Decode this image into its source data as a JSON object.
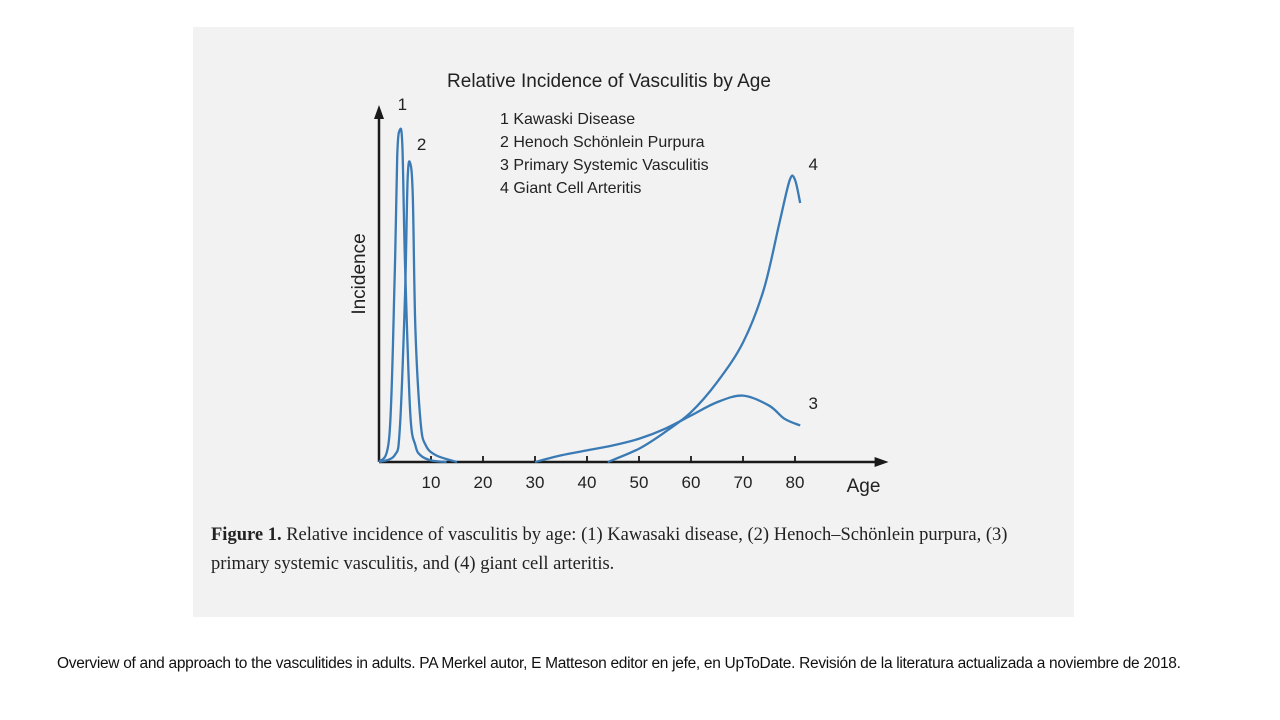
{
  "chart_data": {
    "type": "line",
    "title": "Relative Incidence of Vasculitis by Age",
    "xlabel": "Age",
    "ylabel": "Incidence",
    "xticks": [
      10,
      20,
      30,
      40,
      50,
      60,
      70,
      80
    ],
    "xlim": [
      0,
      98
    ],
    "ylim": [
      0,
      1
    ],
    "legend_placement": "top-center",
    "legend": [
      "1 Kawaski Disease",
      "2 Henoch Schönlein Purpura",
      "3 Primary Systemic Vasculitis",
      "4 Giant Cell Arteritis"
    ],
    "series": [
      {
        "name": "1",
        "x": [
          0,
          2,
          3,
          3.5,
          4,
          4.5,
          5,
          6,
          7,
          8,
          10,
          13
        ],
        "y": [
          0,
          0.08,
          0.55,
          0.92,
          1.0,
          0.95,
          0.6,
          0.15,
          0.05,
          0.02,
          0.005,
          0
        ]
      },
      {
        "name": "2",
        "x": [
          0,
          3,
          4,
          5,
          5.5,
          6,
          6.5,
          7,
          8,
          9,
          11,
          15
        ],
        "y": [
          0,
          0.02,
          0.1,
          0.5,
          0.85,
          0.9,
          0.8,
          0.4,
          0.12,
          0.05,
          0.02,
          0
        ]
      },
      {
        "name": "3",
        "x": [
          30,
          35,
          40,
          45,
          50,
          55,
          60,
          65,
          70,
          75,
          78,
          81
        ],
        "y": [
          0,
          0.02,
          0.035,
          0.05,
          0.07,
          0.1,
          0.14,
          0.18,
          0.2,
          0.17,
          0.13,
          0.11
        ]
      },
      {
        "name": "4",
        "x": [
          44,
          50,
          55,
          60,
          65,
          70,
          74,
          77,
          79,
          80,
          81
        ],
        "y": [
          0,
          0.04,
          0.09,
          0.15,
          0.24,
          0.36,
          0.52,
          0.72,
          0.85,
          0.85,
          0.78
        ]
      }
    ],
    "series_colors": [
      "#3a7ab5",
      "#3a7ab5",
      "#3a7ab5",
      "#3a7ab5"
    ],
    "curve_labels": [
      {
        "text": "1",
        "x": 4.5,
        "y": 1.06
      },
      {
        "text": "2",
        "x": 8.2,
        "y": 0.94
      },
      {
        "text": "3",
        "x": 83.5,
        "y": 0.16
      },
      {
        "text": "4",
        "x": 83.5,
        "y": 0.88
      }
    ],
    "grid": false
  },
  "figure_caption": {
    "prefix": "Figure 1.",
    "text": " Relative incidence of vasculitis by age: (1) Kawasaki disease, (2) Henoch–Schönlein purpura, (3) primary systemic vasculitis, and (4) giant cell arteritis."
  },
  "citation": "Overview of and approach to the vasculitides in adults. PA Merkel autor, E Matteson editor en jefe, en UpToDate. Revisión de la literatura actualizada a noviembre de 2018."
}
